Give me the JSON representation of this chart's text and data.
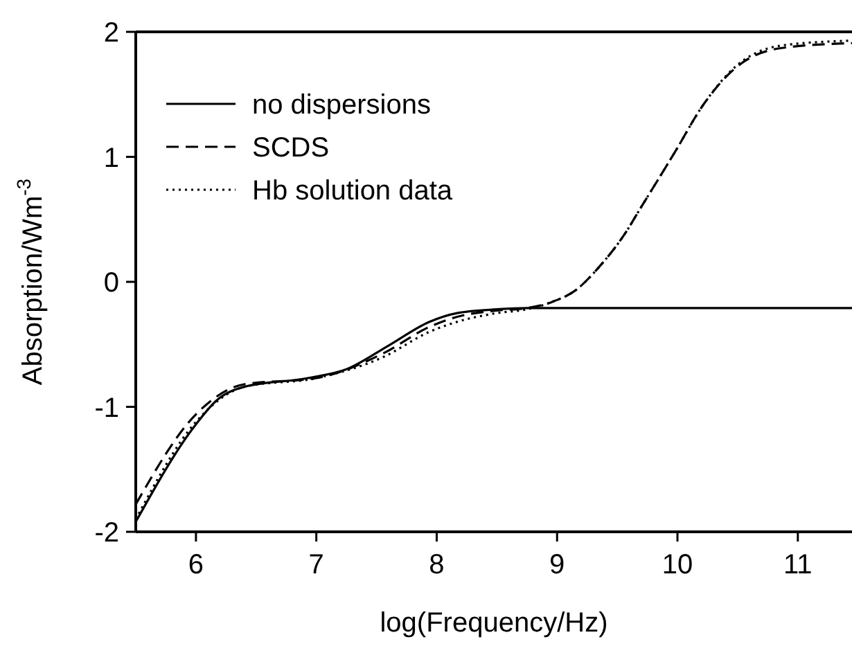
{
  "chart_data": {
    "type": "line",
    "xlabel": "log(Frequency/Hz)",
    "ylabel": "Absorption/Wm$^{-3}$",
    "xlim": [
      5.5,
      11.45
    ],
    "ylim": [
      -2,
      2
    ],
    "xticks": [
      6,
      7,
      8,
      9,
      10,
      11
    ],
    "yticks": [
      -2,
      -1,
      0,
      1,
      2
    ],
    "grid": false,
    "legend": "top left",
    "series": [
      {
        "name": "no dispersions",
        "color": "#000000",
        "line_style": "solid",
        "x": [
          5.5,
          6.0,
          6.17,
          6.4,
          6.93,
          7.25,
          7.6,
          7.94,
          8.17,
          8.5,
          8.75,
          9.5,
          10.5,
          11.45
        ],
        "values": [
          -1.92,
          -1.14,
          -0.95,
          -0.84,
          -0.77,
          -0.7,
          -0.51,
          -0.32,
          -0.25,
          -0.22,
          -0.21,
          -0.21,
          -0.21,
          -0.21
        ]
      },
      {
        "name": "SCDS",
        "color": "#000000",
        "line_style": "dashed",
        "x": [
          5.5,
          6.0,
          6.4,
          7.0,
          7.56,
          7.94,
          8.17,
          8.5,
          8.75,
          8.96,
          9.15,
          9.35,
          9.56,
          9.7,
          9.98,
          10.21,
          10.48,
          10.86,
          11.45
        ],
        "values": [
          -1.78,
          -1.06,
          -0.82,
          -0.77,
          -0.57,
          -0.36,
          -0.28,
          -0.23,
          -0.21,
          -0.16,
          -0.07,
          0.12,
          0.38,
          0.6,
          1.04,
          1.41,
          1.71,
          1.87,
          1.91
        ]
      },
      {
        "name": "Hb solution data",
        "color": "#000000",
        "line_style": "dotted",
        "x": [
          5.5,
          6.0,
          6.4,
          7.0,
          7.56,
          7.94,
          8.17,
          8.5,
          8.75,
          8.96,
          9.15,
          9.35,
          9.56,
          9.7,
          9.98,
          10.21,
          10.48,
          10.86,
          11.45
        ],
        "values": [
          -1.9,
          -1.12,
          -0.84,
          -0.77,
          -0.6,
          -0.4,
          -0.32,
          -0.25,
          -0.22,
          -0.16,
          -0.07,
          0.12,
          0.38,
          0.6,
          1.04,
          1.41,
          1.72,
          1.89,
          1.93
        ]
      }
    ]
  }
}
